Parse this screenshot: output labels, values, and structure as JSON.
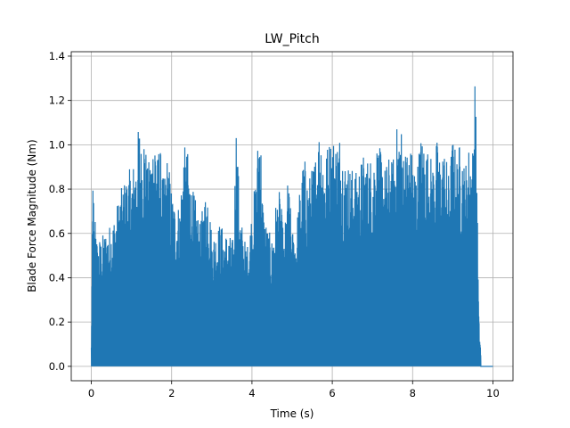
{
  "chart_data": {
    "type": "line",
    "title": "LW_Pitch",
    "xlabel": "Time (s)",
    "ylabel": "Blade Force Magnitude (Nm)",
    "xlim": [
      -0.5,
      10.5
    ],
    "ylim": [
      -0.065,
      1.42
    ],
    "xticks": [
      0,
      2,
      4,
      6,
      8,
      10
    ],
    "yticks": [
      0.0,
      0.2,
      0.4,
      0.6,
      0.8,
      1.0,
      1.2,
      1.4
    ],
    "xtick_labels": [
      "0",
      "2",
      "4",
      "6",
      "8",
      "10"
    ],
    "ytick_labels": [
      "0.0",
      "0.2",
      "0.4",
      "0.6",
      "0.8",
      "1.0",
      "1.2",
      "1.4"
    ],
    "grid": true,
    "series": [
      {
        "color": "#1f77b4",
        "note_style": "dense oscillation between ~0 and envelope",
        "envelope": {
          "x": [
            0.0,
            0.04,
            0.08,
            0.1,
            0.15,
            0.2,
            0.3,
            0.4,
            0.5,
            0.6,
            0.7,
            0.8,
            0.9,
            1.0,
            1.1,
            1.2,
            1.25,
            1.3,
            1.4,
            1.5,
            1.6,
            1.65,
            1.7,
            1.75,
            1.8,
            1.9,
            2.0,
            2.1,
            2.2,
            2.3,
            2.4,
            2.5,
            2.6,
            2.7,
            2.8,
            2.9,
            3.0,
            3.1,
            3.2,
            3.3,
            3.4,
            3.5,
            3.55,
            3.6,
            3.7,
            3.8,
            3.9,
            4.0,
            4.1,
            4.2,
            4.25,
            4.3,
            4.4,
            4.5,
            4.6,
            4.7,
            4.8,
            4.9,
            5.0,
            5.1,
            5.2,
            5.3,
            5.4,
            5.5,
            5.6,
            5.7,
            5.8,
            5.9,
            6.0,
            6.1,
            6.2,
            6.3,
            6.4,
            6.5,
            6.6,
            6.7,
            6.8,
            6.9,
            7.0,
            7.1,
            7.2,
            7.3,
            7.4,
            7.5,
            7.6,
            7.7,
            7.8,
            7.9,
            8.0,
            8.1,
            8.2,
            8.3,
            8.4,
            8.5,
            8.6,
            8.7,
            8.8,
            8.9,
            9.0,
            9.1,
            9.2,
            9.3,
            9.4,
            9.5,
            9.55,
            9.6,
            9.62,
            9.65,
            9.7,
            9.8,
            10.0
          ],
          "y": [
            0.1,
            0.93,
            0.55,
            0.76,
            0.55,
            0.58,
            0.6,
            0.63,
            0.65,
            0.7,
            0.78,
            0.83,
            0.88,
            0.9,
            0.95,
            1.13,
            0.98,
            1.12,
            0.9,
            1.0,
            1.12,
            0.95,
            1.05,
            0.9,
            0.85,
            0.97,
            0.8,
            0.73,
            0.74,
            1.0,
            0.97,
            0.82,
            0.75,
            0.64,
            0.75,
            0.85,
            0.6,
            0.62,
            0.65,
            0.62,
            0.6,
            0.58,
            0.58,
            1.15,
            0.72,
            0.58,
            0.55,
            0.72,
            0.86,
            1.21,
            0.82,
            0.7,
            0.62,
            0.58,
            0.75,
            0.8,
            0.56,
            0.87,
            0.62,
            0.62,
            0.83,
            0.96,
            0.85,
            0.9,
            0.98,
            1.13,
            0.95,
            1.02,
            1.05,
            1.03,
            1.07,
            0.95,
            0.92,
            0.9,
            0.88,
            0.93,
            0.97,
            0.94,
            0.96,
            1.02,
            0.98,
            0.9,
            0.95,
            0.93,
            1.08,
            1.12,
            0.97,
            1.03,
            0.96,
            0.9,
            1.05,
            1.02,
            0.98,
            0.93,
            1.03,
            0.95,
            1.0,
            0.87,
            1.05,
            0.95,
            1.04,
            0.9,
            1.0,
            1.0,
            1.35,
            0.95,
            0.6,
            0.22,
            0.06,
            0.0,
            0.0
          ]
        }
      }
    ]
  }
}
